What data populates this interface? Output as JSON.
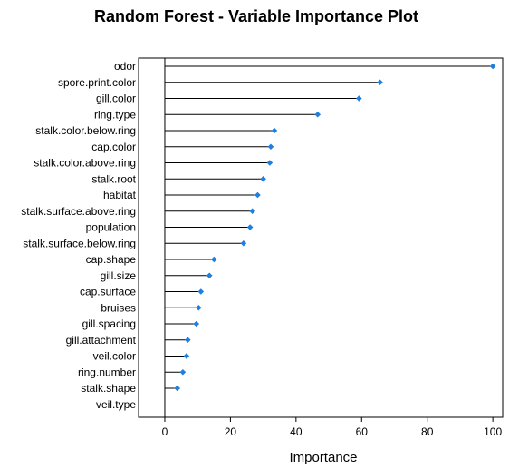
{
  "chart_data": {
    "type": "dot",
    "title": "Random Forest - Variable Importance Plot",
    "xlabel": "Importance",
    "ylabel": "",
    "xlim": [
      -8,
      103
    ],
    "xticks": [
      0,
      20,
      40,
      60,
      80,
      100
    ],
    "grid": false,
    "legend": "none",
    "point_color": "#1e7fe0",
    "categories": [
      "odor",
      "spore.print.color",
      "gill.color",
      "ring.type",
      "stalk.color.below.ring",
      "cap.color",
      "stalk.color.above.ring",
      "stalk.root",
      "habitat",
      "stalk.surface.above.ring",
      "population",
      "stalk.surface.below.ring",
      "cap.shape",
      "gill.size",
      "cap.surface",
      "bruises",
      "gill.spacing",
      "gill.attachment",
      "veil.color",
      "ring.number",
      "stalk.shape",
      "veil.type"
    ],
    "values": [
      100,
      65.6,
      59.2,
      46.6,
      33.4,
      32.3,
      32.0,
      30.0,
      28.3,
      26.7,
      26.0,
      24.0,
      15.0,
      13.6,
      11.0,
      10.3,
      9.6,
      7.0,
      6.6,
      5.5,
      3.8,
      0
    ]
  }
}
